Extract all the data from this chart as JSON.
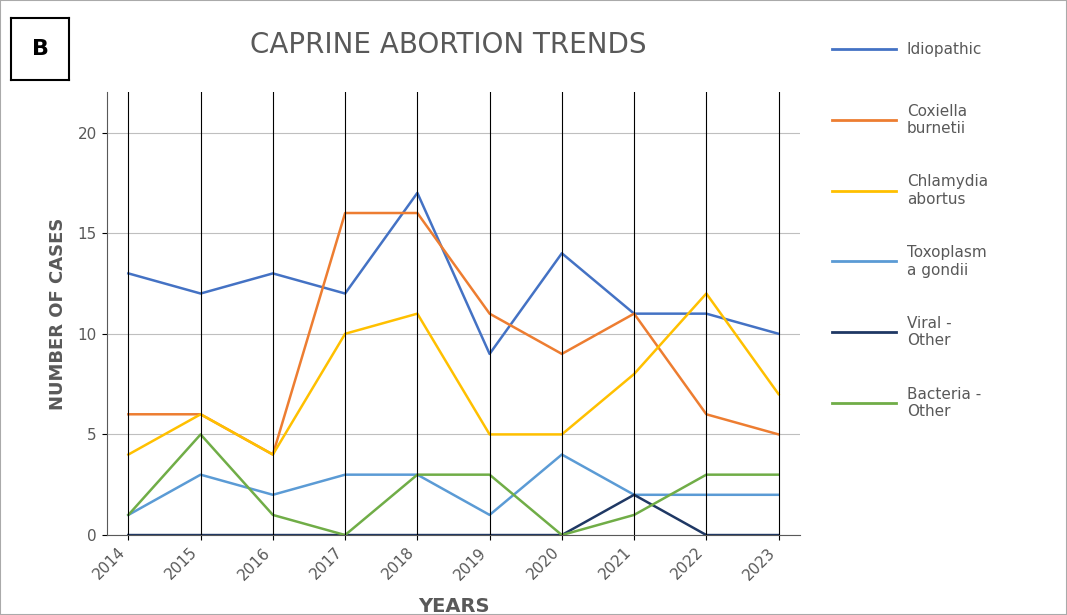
{
  "title": "CAPRINE ABORTION TRENDS",
  "xlabel": "YEARS",
  "ylabel": "NUMBER OF CASES",
  "years": [
    2014,
    2015,
    2016,
    2017,
    2018,
    2019,
    2020,
    2021,
    2022,
    2023
  ],
  "series_order": [
    "Idiopathic",
    "Coxiella\nburnetii",
    "Chlamydia\nabortus",
    "Toxoplasm\na gondii",
    "Viral -\nOther",
    "Bacteria -\nOther"
  ],
  "series": {
    "Idiopathic": {
      "values": [
        13,
        12,
        13,
        12,
        17,
        9,
        14,
        11,
        11,
        10
      ],
      "color": "#4472C4",
      "linewidth": 1.8
    },
    "Coxiella\nburnetii": {
      "values": [
        6,
        6,
        4,
        16,
        16,
        11,
        9,
        11,
        6,
        5
      ],
      "color": "#ED7D31",
      "linewidth": 1.8
    },
    "Chlamydia\nabortus": {
      "values": [
        4,
        6,
        4,
        10,
        11,
        5,
        5,
        8,
        12,
        7
      ],
      "color": "#FFC000",
      "linewidth": 1.8
    },
    "Toxoplasm\na gondii": {
      "values": [
        1,
        3,
        2,
        3,
        3,
        1,
        4,
        2,
        2,
        2
      ],
      "color": "#4472C4",
      "linewidth": 1.8
    },
    "Viral -\nOther": {
      "values": [
        0,
        0,
        0,
        0,
        0,
        0,
        0,
        2,
        0,
        0
      ],
      "color": "#1F3864",
      "linewidth": 1.8
    },
    "Bacteria -\nOther": {
      "values": [
        1,
        5,
        1,
        0,
        3,
        3,
        0,
        1,
        3,
        3
      ],
      "color": "#70AD47",
      "linewidth": 1.8
    }
  },
  "ylim": [
    0,
    22
  ],
  "yticks": [
    0,
    5,
    10,
    15,
    20
  ],
  "background_color": "#FFFFFF",
  "grid_color": "#BFBFBF",
  "label_B": "B",
  "title_fontsize": 20,
  "axis_label_fontsize": 13,
  "tick_fontsize": 11,
  "legend_fontsize": 12,
  "figure_border_color": "#AAAAAA"
}
